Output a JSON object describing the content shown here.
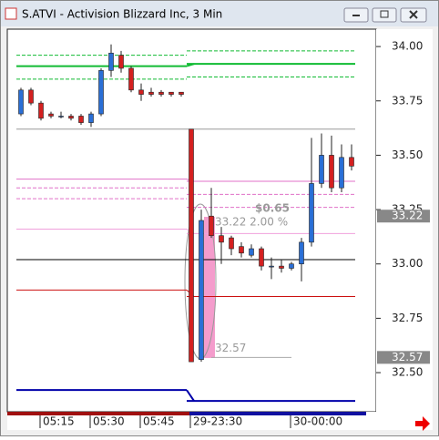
{
  "chart_data": {
    "type": "candlestick",
    "title": "S.ATVI - Activision Blizzard Inc, 3 Min",
    "categories": [
      null,
      null,
      "05:15",
      null,
      null,
      null,
      null,
      "05:30",
      null,
      null,
      null,
      null,
      "05:45",
      null,
      null,
      null,
      null,
      "29-23:30",
      null,
      null,
      null,
      null,
      null,
      null,
      null,
      null,
      null,
      "30-00:00",
      null,
      null,
      null,
      null,
      null,
      null
    ],
    "open": [
      33.69,
      33.8,
      33.74,
      33.69,
      33.68,
      33.68,
      33.68,
      33.65,
      33.69,
      33.89,
      33.96,
      33.9,
      33.8,
      33.79,
      33.79,
      33.79,
      33.79,
      33.62,
      32.56,
      33.22,
      33.13,
      33.12,
      33.08,
      33.04,
      33.07,
      32.99,
      32.99,
      32.98,
      33.0,
      33.1,
      33.37,
      33.5,
      33.35,
      33.49
    ],
    "high": [
      33.81,
      33.81,
      33.75,
      33.7,
      33.7,
      33.69,
      33.69,
      33.7,
      33.9,
      34.01,
      33.98,
      33.91,
      33.83,
      33.81,
      33.8,
      33.79,
      33.79,
      33.62,
      33.25,
      33.35,
      33.17,
      33.13,
      33.1,
      33.09,
      33.08,
      33.03,
      33.02,
      33.01,
      33.12,
      33.58,
      33.6,
      33.59,
      33.55,
      33.55
    ],
    "low": [
      33.68,
      33.73,
      33.66,
      33.67,
      33.67,
      33.66,
      33.64,
      33.63,
      33.68,
      33.86,
      33.88,
      33.79,
      33.75,
      33.77,
      33.77,
      33.77,
      33.77,
      32.55,
      32.55,
      33.12,
      33.0,
      33.04,
      33.03,
      33.03,
      32.97,
      32.93,
      32.96,
      32.97,
      32.92,
      33.08,
      33.35,
      33.33,
      33.33,
      33.43
    ],
    "close": [
      33.8,
      33.74,
      33.67,
      33.68,
      33.68,
      33.67,
      33.65,
      33.69,
      33.89,
      33.97,
      33.9,
      33.8,
      33.78,
      33.78,
      33.78,
      33.78,
      33.78,
      32.55,
      33.2,
      33.13,
      33.1,
      33.07,
      33.05,
      33.07,
      32.99,
      32.99,
      32.98,
      33.0,
      33.1,
      33.37,
      33.5,
      33.35,
      33.49,
      33.45
    ],
    "up_color": "#2a6fd6",
    "down_color": "#d42020",
    "ylim": [
      32.32,
      34.08
    ],
    "yticks": [
      {
        "value": 32.5,
        "label": "32.50"
      },
      {
        "value": 32.75,
        "label": "32.75"
      },
      {
        "value": 33.0,
        "label": "33.00"
      },
      {
        "value": 33.25,
        "label": "33.25"
      },
      {
        "value": 33.5,
        "label": "33.50"
      },
      {
        "value": 33.75,
        "label": "33.75"
      },
      {
        "value": 34.0,
        "label": "34.00"
      }
    ],
    "overlays": [
      {
        "color": "#999999",
        "dashed": false,
        "left": 33.62,
        "right": 33.62
      },
      {
        "color": "#11bb33",
        "dashed": false,
        "left": 33.91,
        "right": 33.92
      },
      {
        "color": "#11bb33",
        "dashed": true,
        "left": 33.96,
        "right": 33.98
      },
      {
        "color": "#11bb33",
        "dashed": true,
        "left": 33.85,
        "right": 33.86
      },
      {
        "color": "#e070c8",
        "dashed": false,
        "left": 33.39,
        "right": 33.38
      },
      {
        "color": "#e070c8",
        "dashed": true,
        "left": 33.35,
        "right": 33.32
      },
      {
        "color": "#e070c8",
        "dashed": true,
        "left": 33.3,
        "right": 33.26
      },
      {
        "color": "#f0a0dc",
        "dashed": false,
        "left": 33.16,
        "right": 33.14
      },
      {
        "color": "#000000",
        "dashed": false,
        "left": 33.02,
        "right": 33.02
      },
      {
        "color": "#cc1111",
        "dashed": false,
        "left": 32.88,
        "right": 32.85
      },
      {
        "color": "#0000aa",
        "dashed": false,
        "left": 32.42,
        "right": 32.37
      }
    ],
    "markers": [
      33.22,
      32.57
    ],
    "annotations": [
      "$0.65",
      "33.22 2.00 %",
      "32.57"
    ]
  }
}
